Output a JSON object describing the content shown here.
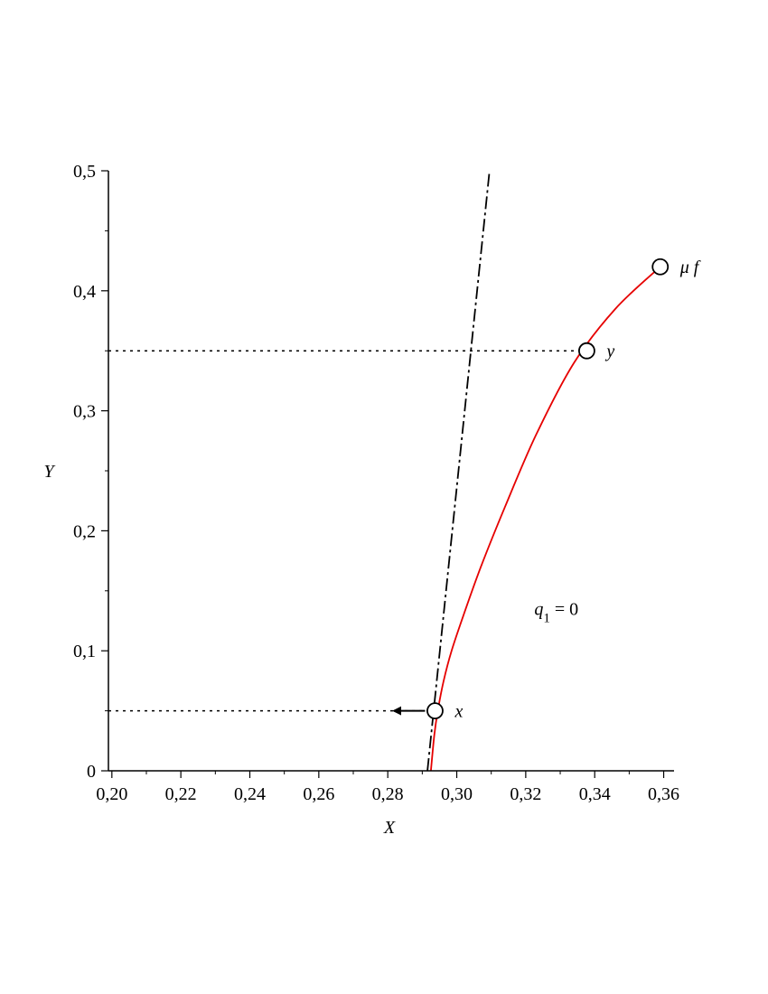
{
  "chart_data": {
    "type": "line",
    "title": "",
    "xlabel": "X",
    "ylabel": "Y",
    "xlim": [
      0.199,
      0.363
    ],
    "ylim": [
      0,
      0.5
    ],
    "x_ticks": [
      0.2,
      0.22,
      0.24,
      0.26,
      0.28,
      0.3,
      0.32,
      0.34,
      0.36
    ],
    "x_tick_labels": [
      "0,20",
      "0,22",
      "0,24",
      "0,26",
      "0,28",
      "0,30",
      "0,32",
      "0,34",
      "0,36"
    ],
    "y_ticks": [
      0,
      0.1,
      0.2,
      0.3,
      0.4,
      0.5
    ],
    "y_tick_labels": [
      "0",
      "0,1",
      "0,2",
      "0,3",
      "0,4",
      "0,5"
    ],
    "grid": false,
    "series": [
      {
        "style": "solid",
        "color": "#e60000",
        "x": [
          0.2925,
          0.2935,
          0.2945,
          0.2962,
          0.2985,
          0.302,
          0.307,
          0.314,
          0.323,
          0.334,
          0.346,
          0.359
        ],
        "y": [
          0.0,
          0.03,
          0.05,
          0.075,
          0.1,
          0.13,
          0.17,
          0.22,
          0.28,
          0.34,
          0.385,
          0.42
        ]
      },
      {
        "style": "dash-dot",
        "color": "#000000",
        "x": [
          0.2915,
          0.3095
        ],
        "y": [
          0.0,
          0.5
        ]
      }
    ],
    "markers": [
      {
        "label": "x",
        "x": 0.2937,
        "y": 0.05
      },
      {
        "label": "y",
        "x": 0.3377,
        "y": 0.35
      },
      {
        "label": "μ f",
        "x": 0.359,
        "y": 0.42
      }
    ],
    "reference_lines": [
      {
        "style": "dotted",
        "from": [
          0.199,
          0.05
        ],
        "to": [
          0.2937,
          0.05
        ]
      },
      {
        "style": "dotted",
        "from": [
          0.199,
          0.35
        ],
        "to": [
          0.3377,
          0.35
        ]
      }
    ],
    "arrow": {
      "from": [
        0.2937,
        0.05
      ],
      "to": [
        0.2818,
        0.05
      ]
    },
    "annotations": [
      {
        "base": "q",
        "subscript": "1",
        "rest": " = 0",
        "x": 0.3225,
        "y": 0.13
      }
    ]
  }
}
